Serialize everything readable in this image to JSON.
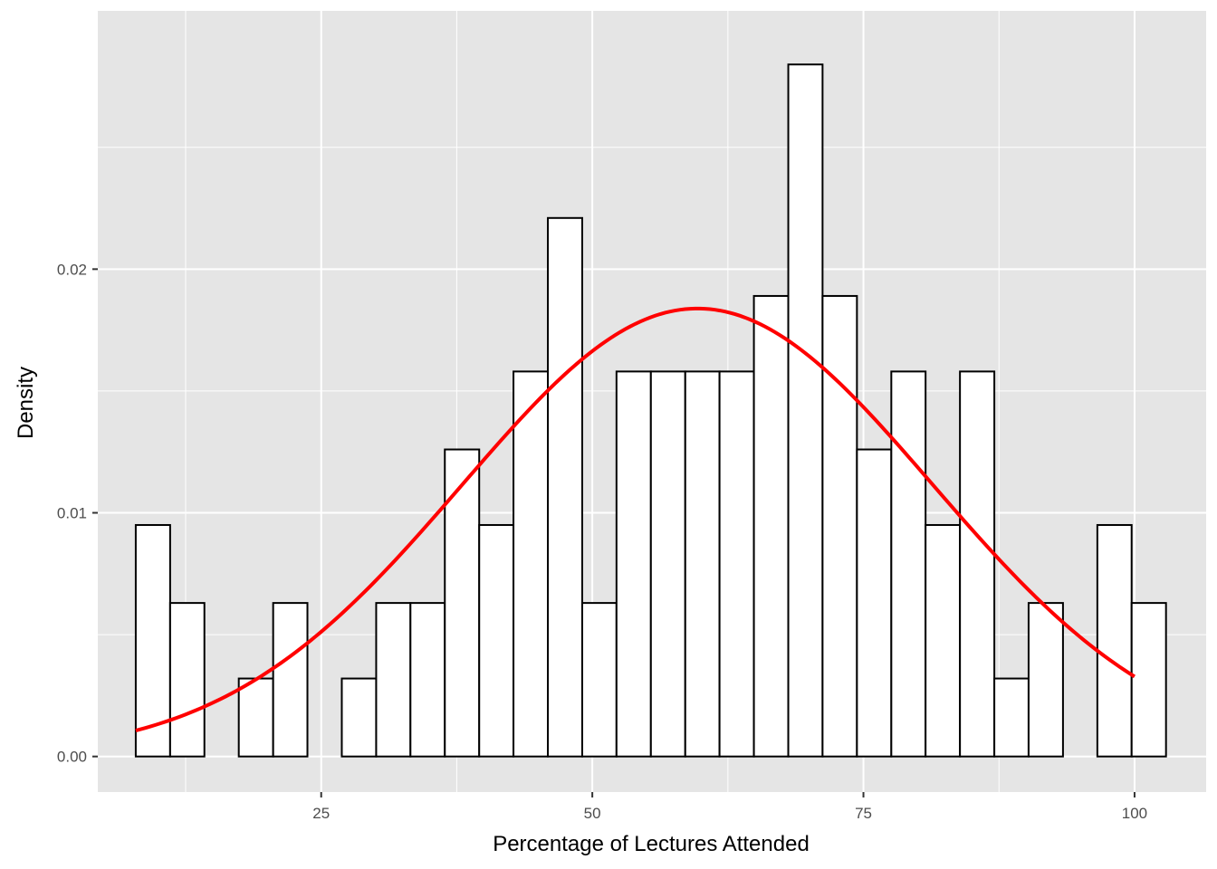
{
  "chart_data": {
    "type": "bar",
    "title": "",
    "xlabel": "Percentage of Lectures Attended",
    "ylabel": "Density",
    "xlim": [
      4.4,
      106.6
    ],
    "ylim": [
      -0.00146,
      0.0306
    ],
    "x_ticks": [
      25,
      50,
      75,
      100
    ],
    "x_tick_labels": [
      "25",
      "50",
      "75",
      "100"
    ],
    "y_ticks": [
      0.0,
      0.01,
      0.02
    ],
    "y_tick_labels": [
      "0.00",
      "0.01",
      "0.02"
    ],
    "grid": true,
    "bin_width": 3.167,
    "bins": [
      {
        "x_start": 7.9,
        "x_end": 11.07,
        "density": 0.0095
      },
      {
        "x_start": 11.07,
        "x_end": 14.23,
        "density": 0.0063
      },
      {
        "x_start": 14.23,
        "x_end": 17.4,
        "density": 0.0
      },
      {
        "x_start": 17.4,
        "x_end": 20.57,
        "density": 0.0032
      },
      {
        "x_start": 20.57,
        "x_end": 23.73,
        "density": 0.0063
      },
      {
        "x_start": 23.73,
        "x_end": 26.9,
        "density": 0.0
      },
      {
        "x_start": 26.9,
        "x_end": 30.07,
        "density": 0.0032
      },
      {
        "x_start": 30.07,
        "x_end": 33.23,
        "density": 0.0063
      },
      {
        "x_start": 33.23,
        "x_end": 36.4,
        "density": 0.0063
      },
      {
        "x_start": 36.4,
        "x_end": 39.57,
        "density": 0.0126
      },
      {
        "x_start": 39.57,
        "x_end": 42.73,
        "density": 0.0095
      },
      {
        "x_start": 42.73,
        "x_end": 45.9,
        "density": 0.0158
      },
      {
        "x_start": 45.9,
        "x_end": 49.07,
        "density": 0.0221
      },
      {
        "x_start": 49.07,
        "x_end": 52.23,
        "density": 0.0063
      },
      {
        "x_start": 52.23,
        "x_end": 55.4,
        "density": 0.0158
      },
      {
        "x_start": 55.4,
        "x_end": 58.57,
        "density": 0.0158
      },
      {
        "x_start": 58.57,
        "x_end": 61.73,
        "density": 0.0158
      },
      {
        "x_start": 61.73,
        "x_end": 64.9,
        "density": 0.0158
      },
      {
        "x_start": 64.9,
        "x_end": 68.07,
        "density": 0.0189
      },
      {
        "x_start": 68.07,
        "x_end": 71.23,
        "density": 0.0284
      },
      {
        "x_start": 71.23,
        "x_end": 74.4,
        "density": 0.0189
      },
      {
        "x_start": 74.4,
        "x_end": 77.57,
        "density": 0.0126
      },
      {
        "x_start": 77.57,
        "x_end": 80.73,
        "density": 0.0158
      },
      {
        "x_start": 80.73,
        "x_end": 83.9,
        "density": 0.0095
      },
      {
        "x_start": 83.9,
        "x_end": 87.07,
        "density": 0.0158
      },
      {
        "x_start": 87.07,
        "x_end": 90.23,
        "density": 0.0032
      },
      {
        "x_start": 90.23,
        "x_end": 93.4,
        "density": 0.0063
      },
      {
        "x_start": 93.4,
        "x_end": 96.57,
        "density": 0.0
      },
      {
        "x_start": 96.57,
        "x_end": 99.73,
        "density": 0.0095
      },
      {
        "x_start": 99.73,
        "x_end": 102.9,
        "density": 0.0063
      }
    ],
    "density_curve": {
      "type": "normal",
      "mean": 59.7,
      "sd": 21.7,
      "x_range": [
        7.9,
        100.0
      ],
      "color": "#ff0000"
    },
    "colors": {
      "panel_background": "#e5e5e5",
      "grid": "#ffffff",
      "bar_fill": "#ffffff",
      "bar_outline": "#000000",
      "curve": "#ff0000"
    }
  }
}
